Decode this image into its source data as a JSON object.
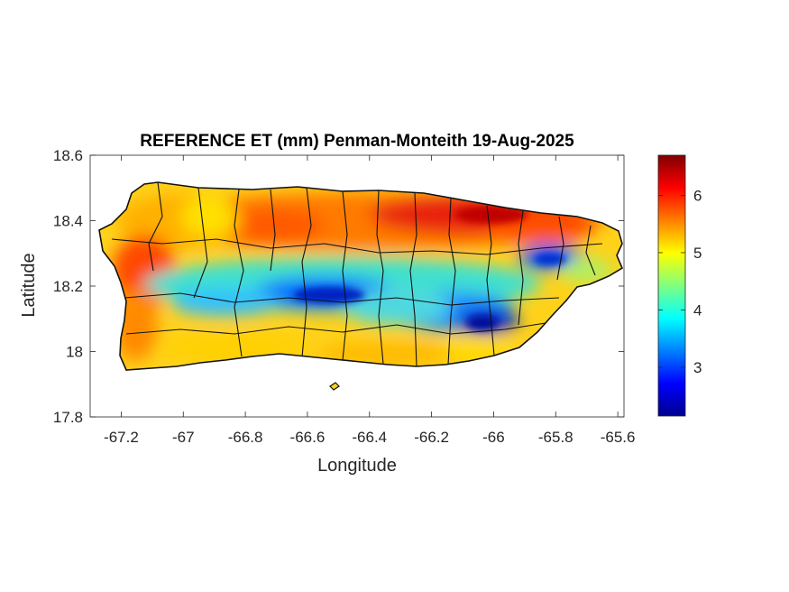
{
  "chart_data": {
    "type": "heatmap",
    "title": "REFERENCE ET (mm) Penman-Monteith 19-Aug-2025",
    "xlabel": "Longitude",
    "ylabel": "Latitude",
    "xlim": [
      -67.3,
      -65.58
    ],
    "ylim": [
      17.8,
      18.6
    ],
    "xticks": [
      "-67.2",
      "-67",
      "-66.8",
      "-66.6",
      "-66.4",
      "-66.2",
      "-66",
      "-65.8",
      "-65.6"
    ],
    "xtick_values": [
      -67.2,
      -67.0,
      -66.8,
      -66.6,
      -66.4,
      -66.2,
      -66.0,
      -65.8,
      -65.6
    ],
    "yticks": [
      "17.8",
      "18",
      "18.2",
      "18.4",
      "18.6"
    ],
    "ytick_values": [
      17.8,
      18.0,
      18.2,
      18.4,
      18.6
    ],
    "colorbar": {
      "colormap": "jet",
      "range": [
        2.15,
        6.7
      ],
      "ticks": [
        "3",
        "4",
        "5",
        "6"
      ],
      "tick_values": [
        3,
        4,
        5,
        6
      ]
    },
    "grid": false,
    "low_value_band": {
      "description_values": "minimum ET ~2.3 mm along central cordillera (-66.6 to -65.95 lon, ~18.05-18.17 lat) and near -65.8, 18.27",
      "min": 2.3,
      "max": 6.6
    }
  }
}
